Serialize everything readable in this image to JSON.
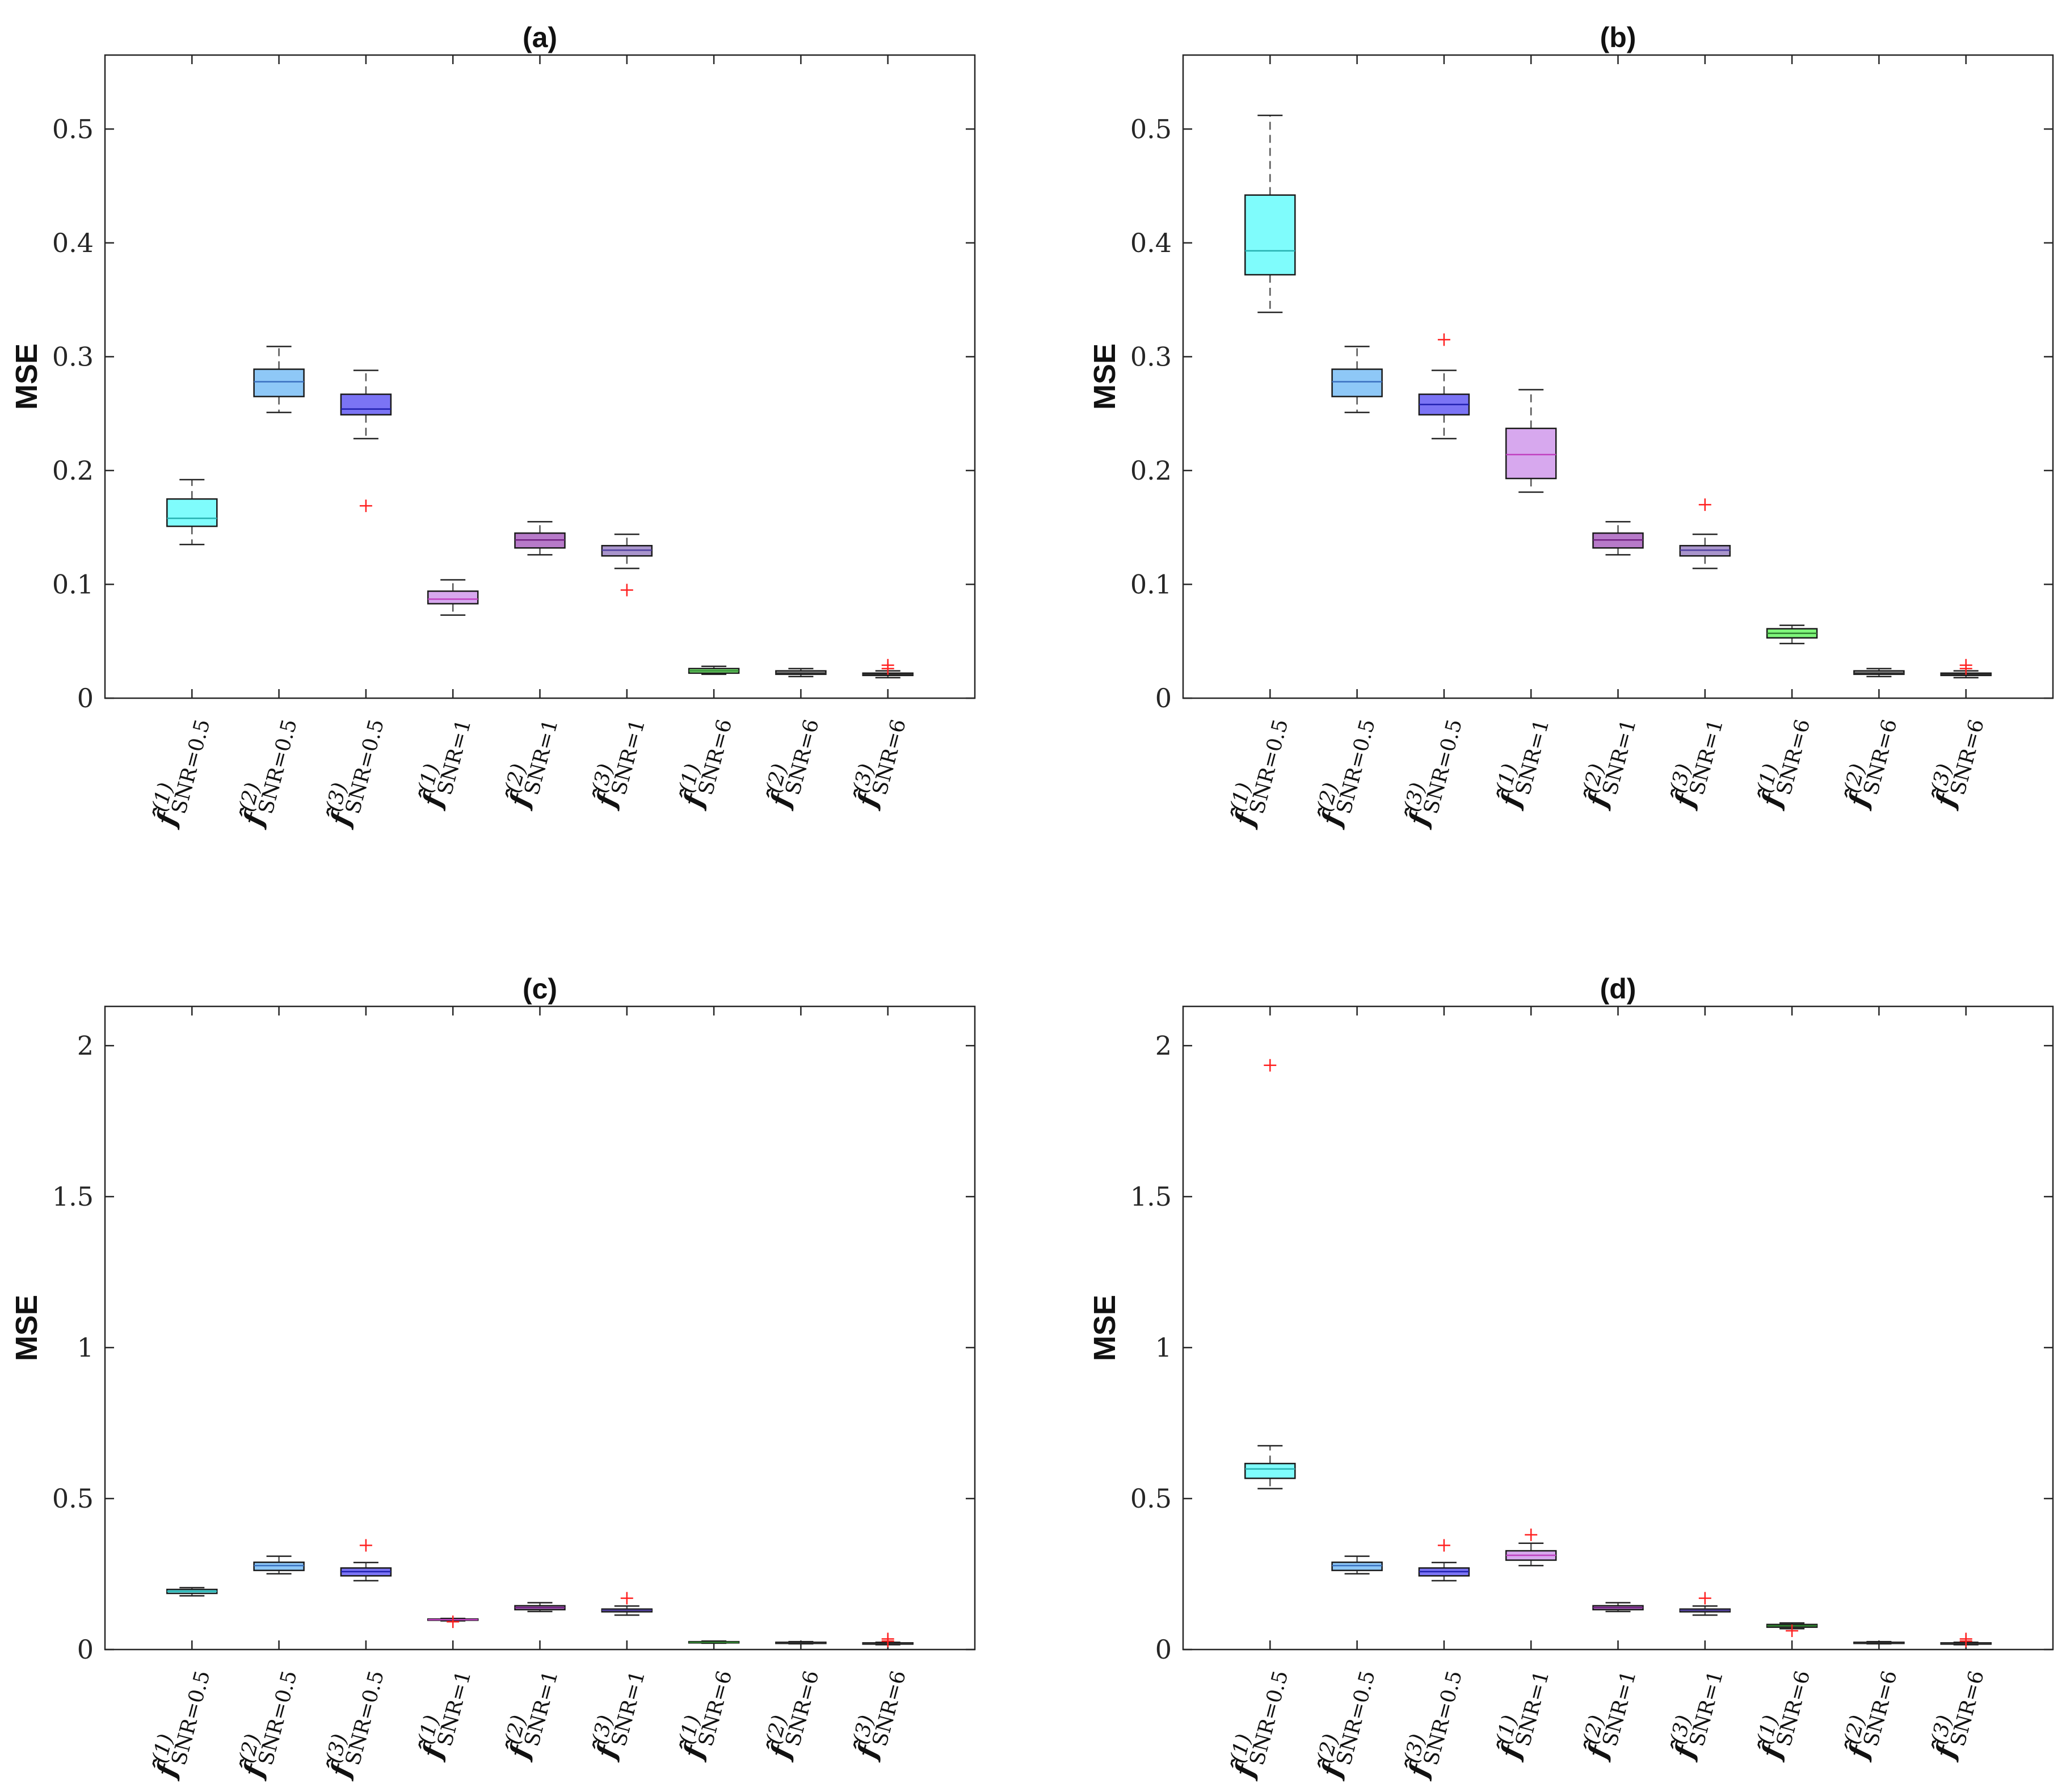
{
  "figure": {
    "yaxis_label": "MSE"
  },
  "categories": [
    {
      "f": "f̂",
      "sup": "(1)",
      "sub": "SNR=0.5"
    },
    {
      "f": "f̂",
      "sup": "(2)",
      "sub": "SNR=0.5"
    },
    {
      "f": "f̂",
      "sup": "(3)",
      "sub": "SNR=0.5"
    },
    {
      "f": "f̂",
      "sup": "(1)",
      "sub": "SNR=1"
    },
    {
      "f": "f̂",
      "sup": "(2)",
      "sub": "SNR=1"
    },
    {
      "f": "f̂",
      "sup": "(3)",
      "sub": "SNR=1"
    },
    {
      "f": "f̂",
      "sup": "(1)",
      "sub": "SNR=6"
    },
    {
      "f": "f̂",
      "sup": "(2)",
      "sub": "SNR=6"
    },
    {
      "f": "f̂",
      "sup": "(3)",
      "sub": "SNR=6"
    }
  ],
  "colors": {
    "boxes": [
      "#7ffcfc",
      "#8ec8f7",
      "#7b74f5",
      "#d7a8ee",
      "#b77ac9",
      "#a995cc",
      "#7ff57a",
      "#a8a8a8",
      "#b8b8b8"
    ],
    "median": [
      "#26b0b0",
      "#3a70c0",
      "#2020b0",
      "#c040c0",
      "#702080",
      "#5040a0",
      "#308030",
      "#303030",
      "#303030"
    ],
    "outlier": "#ff2020",
    "whisker": "#555555",
    "axis": "#262626"
  },
  "chart_data": [
    {
      "type": "box",
      "title": "(a)",
      "ylabel": "MSE",
      "ylim": [
        0,
        0.565
      ],
      "yticks": [
        0,
        0.1,
        0.2,
        0.3,
        0.4,
        0.5
      ],
      "ytick_labels": [
        "0",
        "0.1",
        "0.2",
        "0.3",
        "0.4",
        "0.5"
      ],
      "boxes": [
        {
          "min": 0.135,
          "q1": 0.151,
          "median": 0.158,
          "q3": 0.175,
          "max": 0.192,
          "outliers": []
        },
        {
          "min": 0.251,
          "q1": 0.265,
          "median": 0.278,
          "q3": 0.289,
          "max": 0.309,
          "outliers": []
        },
        {
          "min": 0.228,
          "q1": 0.249,
          "median": 0.254,
          "q3": 0.267,
          "max": 0.288,
          "outliers": [
            0.169
          ]
        },
        {
          "min": 0.073,
          "q1": 0.083,
          "median": 0.087,
          "q3": 0.094,
          "max": 0.104,
          "outliers": []
        },
        {
          "min": 0.126,
          "q1": 0.132,
          "median": 0.139,
          "q3": 0.145,
          "max": 0.155,
          "outliers": []
        },
        {
          "min": 0.114,
          "q1": 0.125,
          "median": 0.13,
          "q3": 0.134,
          "max": 0.144,
          "outliers": [
            0.095
          ]
        },
        {
          "min": 0.021,
          "q1": 0.022,
          "median": 0.024,
          "q3": 0.026,
          "max": 0.028,
          "outliers": []
        },
        {
          "min": 0.019,
          "q1": 0.021,
          "median": 0.022,
          "q3": 0.024,
          "max": 0.026,
          "outliers": []
        },
        {
          "min": 0.018,
          "q1": 0.02,
          "median": 0.021,
          "q3": 0.022,
          "max": 0.024,
          "outliers": [
            0.029,
            0.026
          ]
        }
      ]
    },
    {
      "type": "box",
      "title": "(b)",
      "ylabel": "MSE",
      "ylim": [
        0,
        0.565
      ],
      "yticks": [
        0,
        0.1,
        0.2,
        0.3,
        0.4,
        0.5
      ],
      "ytick_labels": [
        "0",
        "0.1",
        "0.2",
        "0.3",
        "0.4",
        "0.5"
      ],
      "boxes": [
        {
          "min": 0.339,
          "q1": 0.372,
          "median": 0.393,
          "q3": 0.442,
          "max": 0.512,
          "outliers": []
        },
        {
          "min": 0.251,
          "q1": 0.265,
          "median": 0.278,
          "q3": 0.289,
          "max": 0.309,
          "outliers": []
        },
        {
          "min": 0.228,
          "q1": 0.249,
          "median": 0.258,
          "q3": 0.267,
          "max": 0.288,
          "outliers": [
            0.315
          ]
        },
        {
          "min": 0.181,
          "q1": 0.193,
          "median": 0.214,
          "q3": 0.237,
          "max": 0.271,
          "outliers": []
        },
        {
          "min": 0.126,
          "q1": 0.132,
          "median": 0.139,
          "q3": 0.145,
          "max": 0.155,
          "outliers": []
        },
        {
          "min": 0.114,
          "q1": 0.125,
          "median": 0.13,
          "q3": 0.134,
          "max": 0.144,
          "outliers": [
            0.17
          ]
        },
        {
          "min": 0.048,
          "q1": 0.053,
          "median": 0.057,
          "q3": 0.061,
          "max": 0.064,
          "outliers": []
        },
        {
          "min": 0.019,
          "q1": 0.021,
          "median": 0.022,
          "q3": 0.024,
          "max": 0.026,
          "outliers": []
        },
        {
          "min": 0.018,
          "q1": 0.02,
          "median": 0.021,
          "q3": 0.022,
          "max": 0.024,
          "outliers": [
            0.029,
            0.026
          ]
        }
      ]
    },
    {
      "type": "box",
      "title": "(c)",
      "ylabel": "MSE",
      "ylim": [
        0,
        2.13
      ],
      "yticks": [
        0,
        0.5,
        1,
        1.5,
        2
      ],
      "ytick_labels": [
        "0",
        "0.5",
        "1",
        "1.5",
        "2"
      ],
      "boxes": [
        {
          "min": 0.178,
          "q1": 0.186,
          "median": 0.193,
          "q3": 0.199,
          "max": 0.205,
          "outliers": []
        },
        {
          "min": 0.251,
          "q1": 0.262,
          "median": 0.278,
          "q3": 0.289,
          "max": 0.309,
          "outliers": []
        },
        {
          "min": 0.228,
          "q1": 0.244,
          "median": 0.258,
          "q3": 0.27,
          "max": 0.288,
          "outliers": [
            0.345
          ]
        },
        {
          "min": 0.095,
          "q1": 0.097,
          "median": 0.099,
          "q3": 0.101,
          "max": 0.103,
          "outliers": [
            0.092
          ]
        },
        {
          "min": 0.126,
          "q1": 0.132,
          "median": 0.139,
          "q3": 0.145,
          "max": 0.155,
          "outliers": []
        },
        {
          "min": 0.114,
          "q1": 0.125,
          "median": 0.13,
          "q3": 0.134,
          "max": 0.144,
          "outliers": [
            0.17
          ]
        },
        {
          "min": 0.021,
          "q1": 0.022,
          "median": 0.024,
          "q3": 0.026,
          "max": 0.028,
          "outliers": []
        },
        {
          "min": 0.019,
          "q1": 0.021,
          "median": 0.022,
          "q3": 0.024,
          "max": 0.026,
          "outliers": []
        },
        {
          "min": 0.016,
          "q1": 0.018,
          "median": 0.02,
          "q3": 0.022,
          "max": 0.024,
          "outliers": [
            0.035,
            0.028
          ]
        }
      ]
    },
    {
      "type": "box",
      "title": "(d)",
      "ylabel": "MSE",
      "ylim": [
        0,
        2.13
      ],
      "yticks": [
        0,
        0.5,
        1,
        1.5,
        2
      ],
      "ytick_labels": [
        "0",
        "0.5",
        "1",
        "1.5",
        "2"
      ],
      "boxes": [
        {
          "min": 0.533,
          "q1": 0.567,
          "median": 0.598,
          "q3": 0.616,
          "max": 0.675,
          "outliers": [
            1.935
          ]
        },
        {
          "min": 0.251,
          "q1": 0.262,
          "median": 0.278,
          "q3": 0.289,
          "max": 0.309,
          "outliers": []
        },
        {
          "min": 0.228,
          "q1": 0.244,
          "median": 0.258,
          "q3": 0.27,
          "max": 0.288,
          "outliers": [
            0.345
          ]
        },
        {
          "min": 0.278,
          "q1": 0.296,
          "median": 0.312,
          "q3": 0.327,
          "max": 0.352,
          "outliers": [
            0.38
          ]
        },
        {
          "min": 0.126,
          "q1": 0.132,
          "median": 0.139,
          "q3": 0.145,
          "max": 0.155,
          "outliers": []
        },
        {
          "min": 0.114,
          "q1": 0.125,
          "median": 0.13,
          "q3": 0.134,
          "max": 0.144,
          "outliers": [
            0.17
          ]
        },
        {
          "min": 0.069,
          "q1": 0.074,
          "median": 0.079,
          "q3": 0.083,
          "max": 0.088,
          "outliers": [
            0.062
          ]
        },
        {
          "min": 0.019,
          "q1": 0.021,
          "median": 0.022,
          "q3": 0.024,
          "max": 0.026,
          "outliers": []
        },
        {
          "min": 0.016,
          "q1": 0.018,
          "median": 0.02,
          "q3": 0.022,
          "max": 0.024,
          "outliers": [
            0.035,
            0.028
          ]
        }
      ]
    }
  ]
}
